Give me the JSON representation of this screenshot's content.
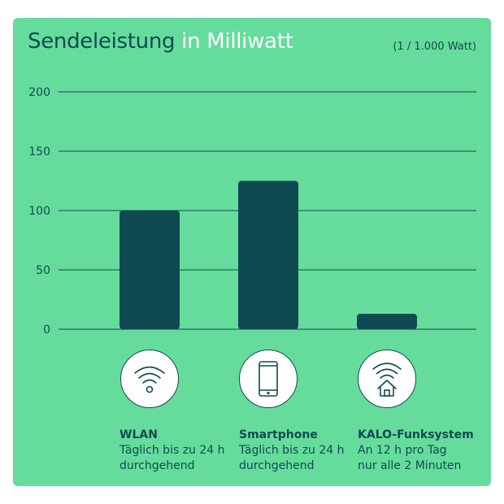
{
  "title": {
    "part1": "Sendeleistung",
    "part2": " in Milliwatt"
  },
  "unit_note": "(1 / 1.000 Watt)",
  "colors": {
    "background": "#66dc9c",
    "bar": "#0f4a52",
    "title_accent": "#ffffff"
  },
  "chart_data": {
    "type": "bar",
    "title": "Sendeleistung in Milliwatt",
    "ylabel": "",
    "xlabel": "",
    "ylim": [
      0,
      200
    ],
    "yticks": [
      0,
      50,
      100,
      150,
      200
    ],
    "grid": true,
    "categories": [
      "WLAN",
      "Smartphone",
      "KALO-Funksystem"
    ],
    "values": [
      100,
      125,
      13
    ]
  },
  "categories": [
    {
      "name": "WLAN",
      "line1": "Täglich bis zu 24 h",
      "line2": "durchgehend",
      "icon": "wifi-icon"
    },
    {
      "name": "Smartphone",
      "line1": "Täglich bis zu 24 h",
      "line2": "durchgehend",
      "icon": "smartphone-icon"
    },
    {
      "name": "KALO-Funksystem",
      "line1": "An 12 h pro Tag",
      "line2": "nur alle 2 Minuten",
      "icon": "wifi-house-icon"
    }
  ]
}
